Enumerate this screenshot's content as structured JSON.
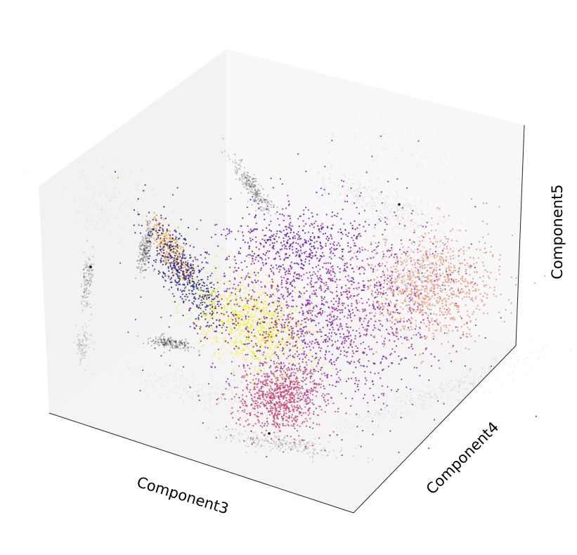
{
  "chart_data": {
    "type": "scatter",
    "projection": "3d",
    "title": "",
    "xlabel": "Component3",
    "ylabel": "Component4",
    "zlabel": "Component5",
    "tick_labels_shown": false,
    "grid": false,
    "legend": "none",
    "pane_colors": {
      "left": "#f2f2f2",
      "back": "#f7f7f7",
      "floor": "#f4f4f4"
    },
    "projection_shadow_color": "#000000",
    "clusters": [
      {
        "color": "#f0a030",
        "approx_points": 250
      },
      {
        "color": "#1c1f8a",
        "approx_points": 500
      },
      {
        "color": "#f4f02a",
        "approx_points": 900
      },
      {
        "color": "#8a1ca8",
        "approx_points": 1800
      },
      {
        "color": "#5c10a8",
        "approx_points": 300
      },
      {
        "color": "#ee8c6e",
        "approx_points": 900
      },
      {
        "color": "#cc4470",
        "approx_points": 800
      }
    ]
  }
}
